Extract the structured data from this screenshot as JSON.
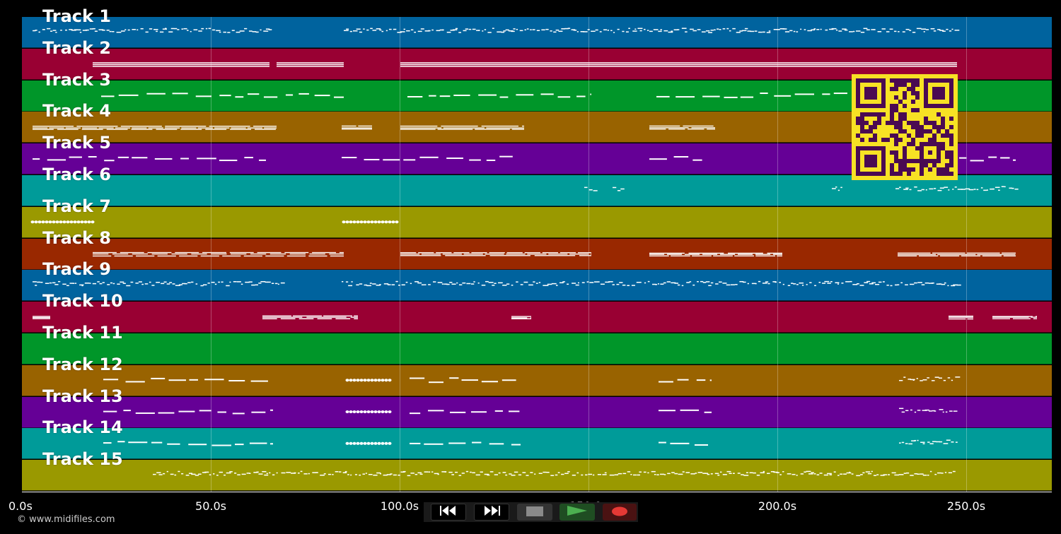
{
  "tracks": [
    {
      "label": "Track 1",
      "color": "#00639e"
    },
    {
      "label": "Track 2",
      "color": "#990033"
    },
    {
      "label": "Track 3",
      "color": "#009629"
    },
    {
      "label": "Track 4",
      "color": "#996300"
    },
    {
      "label": "Track 5",
      "color": "#650096"
    },
    {
      "label": "Track 6",
      "color": "#009b99"
    },
    {
      "label": "Track 7",
      "color": "#9a9900"
    },
    {
      "label": "Track 8",
      "color": "#992800"
    },
    {
      "label": "Track 9",
      "color": "#00639e"
    },
    {
      "label": "Track 10",
      "color": "#990033"
    },
    {
      "label": "Track 11",
      "color": "#009629"
    },
    {
      "label": "Track 12",
      "color": "#996300"
    },
    {
      "label": "Track 13",
      "color": "#650096"
    },
    {
      "label": "Track 14",
      "color": "#009b99"
    },
    {
      "label": "Track 15",
      "color": "#9a9900"
    }
  ],
  "timeline": {
    "ticks": [
      "0.0s",
      "50.0s",
      "100.0s",
      "150.0s",
      "200.0s",
      "250.0s"
    ],
    "tick_values": [
      0,
      50,
      100,
      150,
      200,
      250
    ],
    "duration_seconds": 272
  },
  "transport": {
    "rewind_icon": "rewind-icon",
    "fast_forward_icon": "fast-forward-icon",
    "stop_icon": "stop-icon",
    "play_icon": "play-icon",
    "record_icon": "record-icon",
    "play_color": "#4caf50",
    "record_color": "#e53935"
  },
  "footer": {
    "copyright": "© www.midifiles.com"
  },
  "qr": {
    "color": "#f7e224",
    "dark_color": "#4a0a52"
  }
}
